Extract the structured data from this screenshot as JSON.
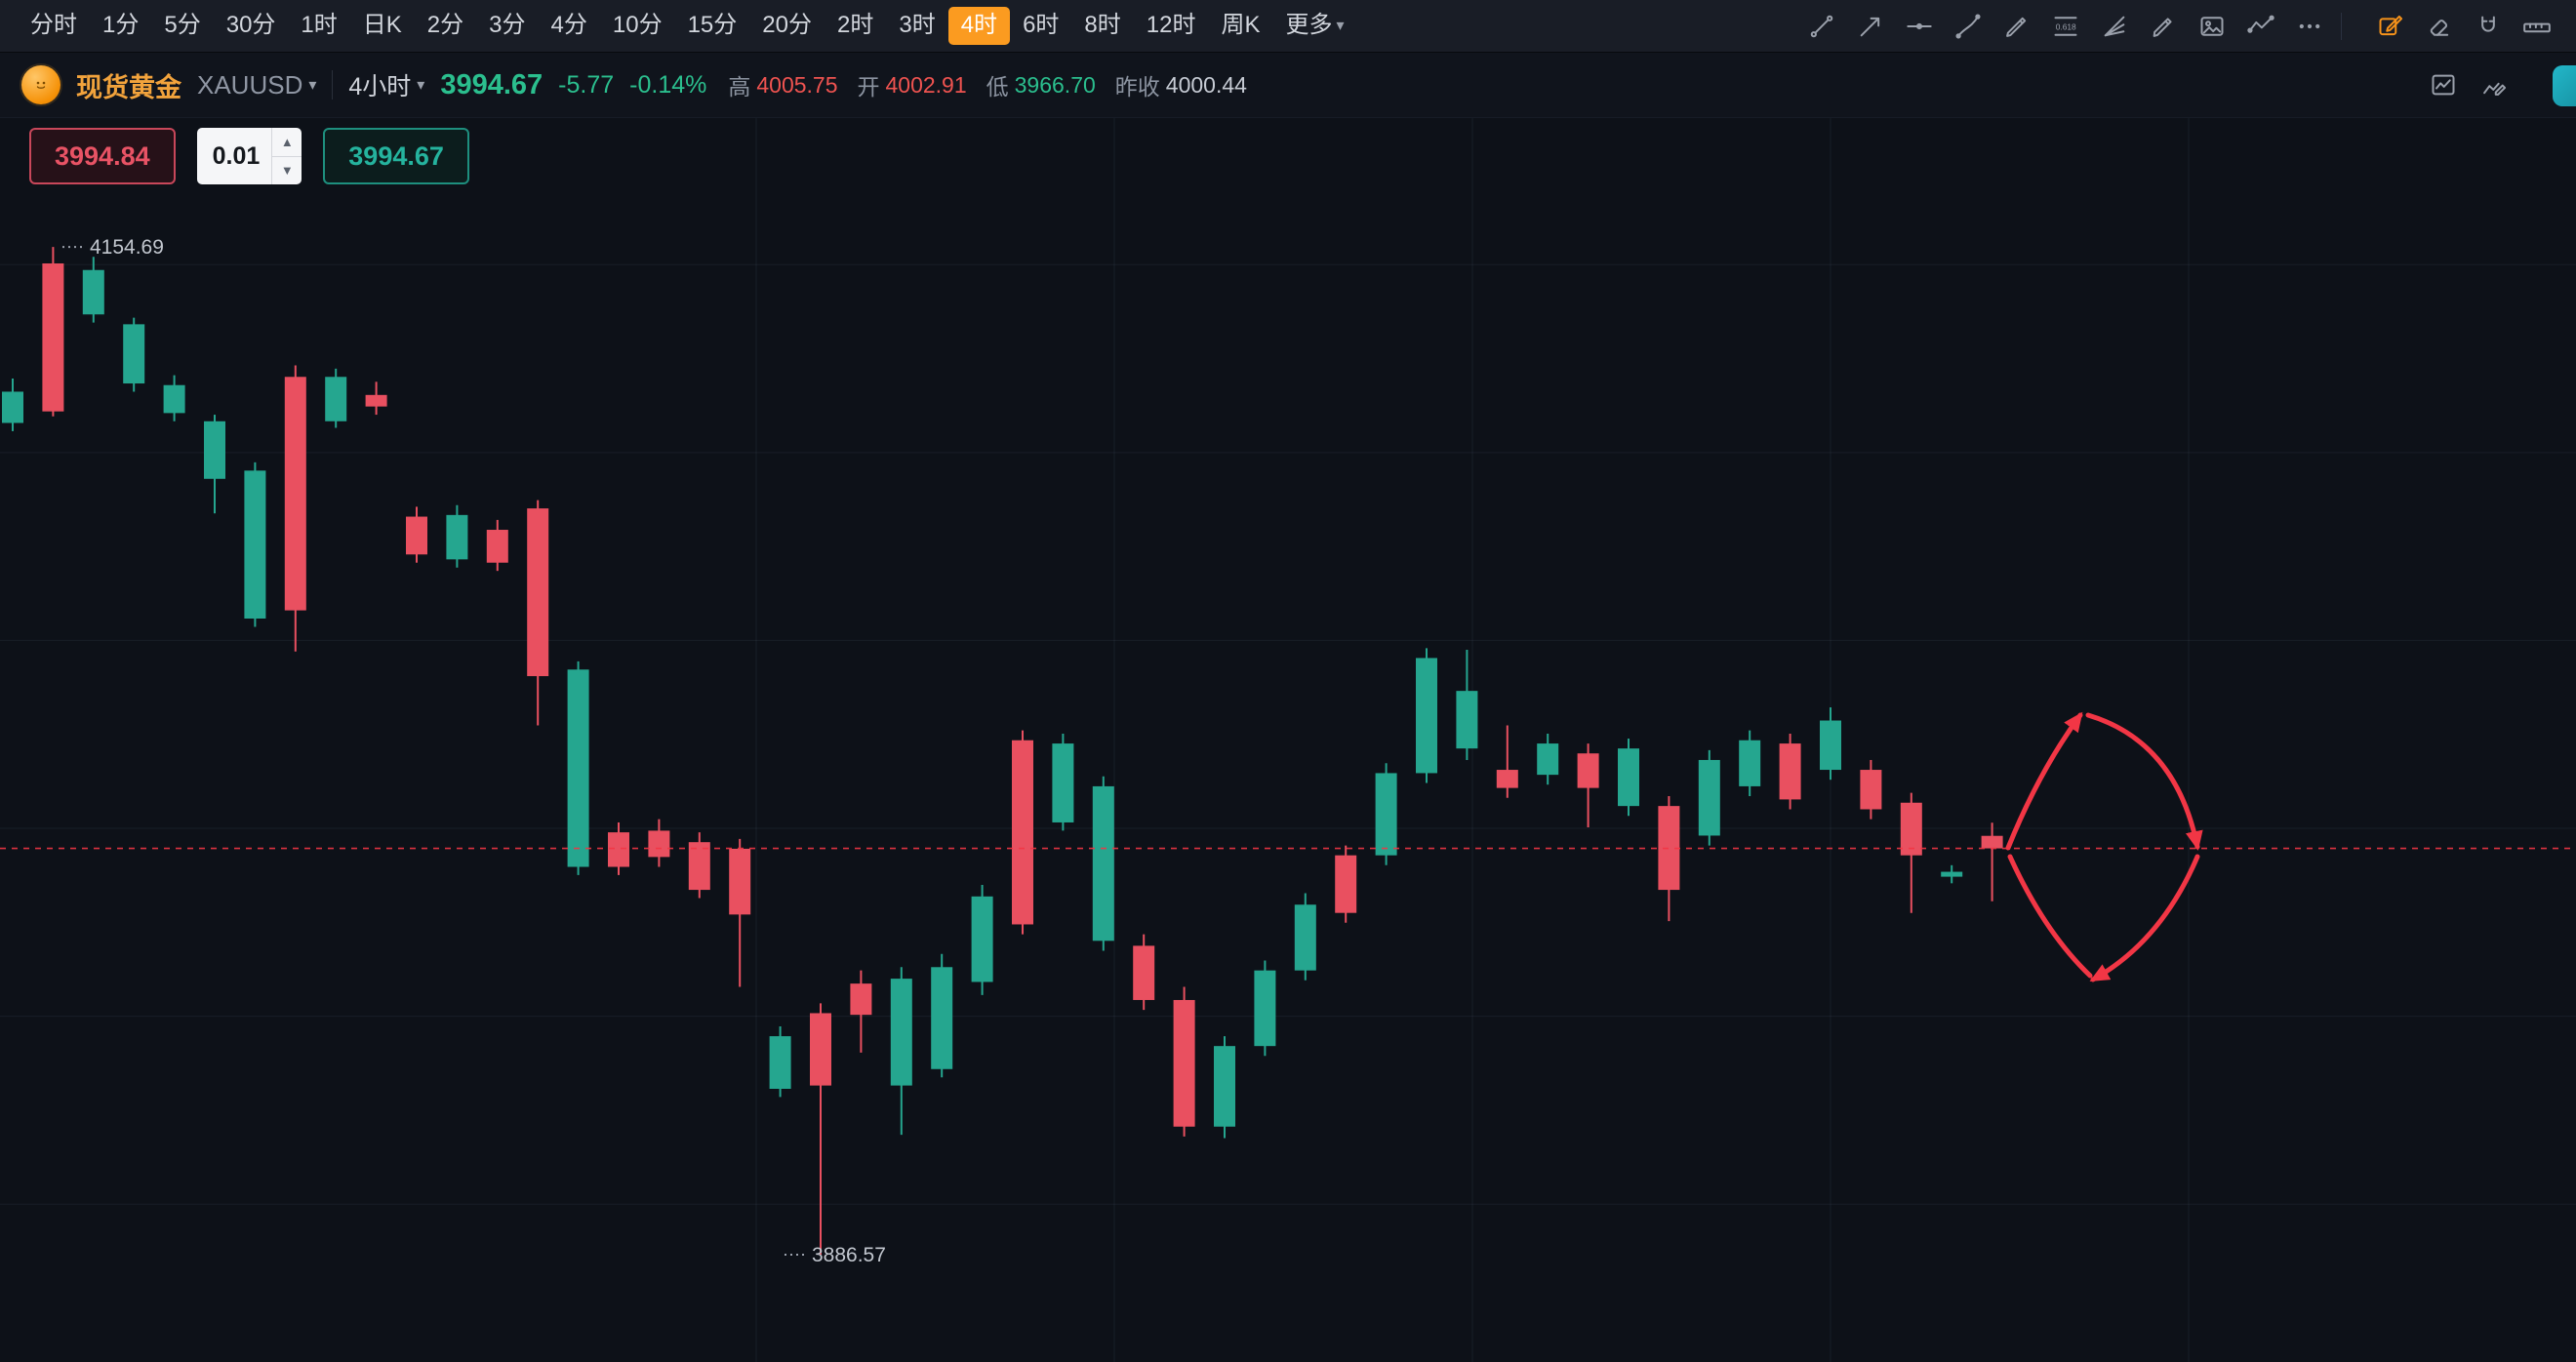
{
  "toolbar": {
    "timeframes": [
      "分时",
      "1分",
      "5分",
      "30分",
      "1时",
      "日K",
      "2分",
      "3分",
      "4分",
      "10分",
      "15分",
      "20分",
      "2时",
      "3时",
      "4时",
      "6时",
      "8时",
      "12时",
      "周K"
    ],
    "active_timeframe": "4时",
    "more_label": "更多",
    "tools": [
      "trendline",
      "arrow-trendline",
      "horizontal-line",
      "brush",
      "pen",
      "fib-retracement",
      "gann-fan",
      "marker",
      "image",
      "wave",
      "more"
    ],
    "right_tools": [
      {
        "name": "draw-edit",
        "color": "#f7931a"
      },
      {
        "name": "eraser",
        "color": "#9aa0ab"
      },
      {
        "name": "magnet",
        "color": "#9aa0ab"
      },
      {
        "name": "ruler",
        "color": "#9aa0ab"
      }
    ]
  },
  "symbol_bar": {
    "instrument_name": "现货黄金",
    "symbol": "XAUUSD",
    "interval": "4小时",
    "price": "3994.67",
    "change": "-5.77",
    "change_pct": "-0.14%",
    "stats": [
      {
        "label": "高",
        "value": "4005.75",
        "tone": "down"
      },
      {
        "label": "开",
        "value": "4002.91",
        "tone": "down"
      },
      {
        "label": "低",
        "value": "3966.70",
        "tone": "up"
      },
      {
        "label": "昨收",
        "value": "4000.44",
        "tone": "neutral"
      }
    ],
    "icons": [
      "indicator",
      "chart-edit"
    ]
  },
  "trade_panel": {
    "sell_price": "3994.84",
    "quantity": "0.01",
    "buy_price": "3994.67"
  },
  "chart_data": {
    "type": "candlestick",
    "symbol": "XAUUSD",
    "interval": "4h",
    "ylim": [
      3858,
      4189
    ],
    "current_price": 3994.67,
    "colors": {
      "up": "#25a68f",
      "down": "#e95060",
      "price_line": "#f23645",
      "grid": "rgba(130,145,175,0.10)",
      "label": "#c2c7cf"
    },
    "layout": {
      "x_start": 13,
      "x_step": 41.4,
      "body_width": 22,
      "grid_on": true
    },
    "grid": {
      "vertical_x": [
        775,
        1142,
        1509,
        1876,
        2243
      ],
      "horizontal_prices": [
        4150,
        4100,
        4050,
        4000,
        3950,
        3900
      ]
    },
    "annotations": {
      "high_label": {
        "text": "4154.69",
        "price": 4154.69,
        "x": 92
      },
      "low_label": {
        "text": "3886.57",
        "price": 3886.57,
        "x": 832
      },
      "arrows": {
        "color": "#f23645",
        "segments": [
          {
            "from": [
              2058,
              748
            ],
            "ctrl": [
              2090,
              669
            ],
            "to": [
              2132,
              612
            ],
            "head": true
          },
          {
            "from": [
              2140,
              612
            ],
            "ctrl": [
              2230,
              639
            ],
            "to": [
              2252,
              747
            ],
            "head": true
          },
          {
            "from": [
              2060,
              757
            ],
            "ctrl": [
              2095,
              834
            ],
            "to": [
              2142,
              879
            ],
            "head": false
          },
          {
            "from": [
              2252,
              757
            ],
            "ctrl": [
              2215,
              844
            ],
            "to": [
              2145,
              883
            ],
            "head": true
          }
        ]
      }
    },
    "candles": [
      [
        4107.87,
        4119.69,
        4105.69,
        4116.19
      ],
      [
        4150.32,
        4154.69,
        4109.62,
        4110.94
      ],
      [
        4136.75,
        4152.06,
        4134.57,
        4148.57
      ],
      [
        4118.38,
        4135.88,
        4116.19,
        4134.13
      ],
      [
        4110.5,
        4120.57,
        4108.32,
        4117.94
      ],
      [
        4093.0,
        4110.06,
        4083.81,
        4108.32
      ],
      [
        4055.82,
        4097.38,
        4053.63,
        4095.19
      ],
      [
        4120.13,
        4123.19,
        4047.07,
        4058.0
      ],
      [
        4108.32,
        4122.32,
        4106.57,
        4120.13
      ],
      [
        4115.32,
        4118.82,
        4110.06,
        4112.25
      ],
      [
        4082.94,
        4085.57,
        4070.69,
        4072.88
      ],
      [
        4071.57,
        4086.0,
        4069.38,
        4083.38
      ],
      [
        4079.44,
        4082.07,
        4068.5,
        4070.69
      ],
      [
        4085.13,
        4087.32,
        4027.38,
        4040.5
      ],
      [
        3989.75,
        4044.44,
        3987.57,
        4042.25
      ],
      [
        3998.94,
        4001.57,
        3987.57,
        3989.75
      ],
      [
        3999.38,
        4002.44,
        3989.75,
        3992.38
      ],
      [
        3996.32,
        3998.94,
        3981.44,
        3983.63
      ],
      [
        3994.57,
        3997.19,
        3957.82,
        3977.07
      ],
      [
        3930.69,
        3947.32,
        3928.5,
        3944.69
      ],
      [
        3950.82,
        3953.44,
        3886.57,
        3931.57
      ],
      [
        3958.69,
        3962.19,
        3940.32,
        3950.38
      ],
      [
        3931.57,
        3963.07,
        3918.44,
        3960.0
      ],
      [
        3935.94,
        3966.57,
        3933.75,
        3963.07
      ],
      [
        3959.13,
        3984.94,
        3955.63,
        3981.88
      ],
      [
        4023.44,
        4026.07,
        3971.82,
        3974.44
      ],
      [
        4001.57,
        4025.19,
        3999.38,
        4022.57
      ],
      [
        3970.07,
        4013.82,
        3967.44,
        4011.19
      ],
      [
        3968.75,
        3971.82,
        3951.69,
        3954.32
      ],
      [
        3954.32,
        3957.82,
        3918.0,
        3920.63
      ],
      [
        3920.63,
        3944.69,
        3917.57,
        3942.07
      ],
      [
        3942.07,
        3964.82,
        3939.44,
        3962.19
      ],
      [
        3962.19,
        3982.75,
        3959.57,
        3979.69
      ],
      [
        3992.82,
        3995.44,
        3974.88,
        3977.5
      ],
      [
        3992.82,
        4017.32,
        3990.19,
        4014.69
      ],
      [
        4014.69,
        4047.94,
        4012.07,
        4045.32
      ],
      [
        4021.25,
        4047.5,
        4018.19,
        4036.57
      ],
      [
        4015.57,
        4027.38,
        4008.13,
        4010.75
      ],
      [
        4014.25,
        4025.19,
        4011.63,
        4022.57
      ],
      [
        4019.94,
        4022.57,
        4000.25,
        4010.75
      ],
      [
        4005.94,
        4023.88,
        4003.32,
        4021.25
      ],
      [
        4005.94,
        4008.57,
        3975.32,
        3983.63
      ],
      [
        3998.07,
        4020.82,
        3995.44,
        4018.19
      ],
      [
        4011.19,
        4026.07,
        4008.57,
        4023.44
      ],
      [
        4022.57,
        4025.19,
        4005.07,
        4007.69
      ],
      [
        4015.57,
        4032.19,
        4012.94,
        4028.69
      ],
      [
        4015.57,
        4018.19,
        4002.44,
        4005.07
      ],
      [
        4006.82,
        4009.44,
        3977.5,
        3992.82
      ],
      [
        3987.13,
        3990.19,
        3985.38,
        3988.44
      ],
      [
        3998.0,
        4001.5,
        3980.6,
        3994.67
      ]
    ]
  }
}
